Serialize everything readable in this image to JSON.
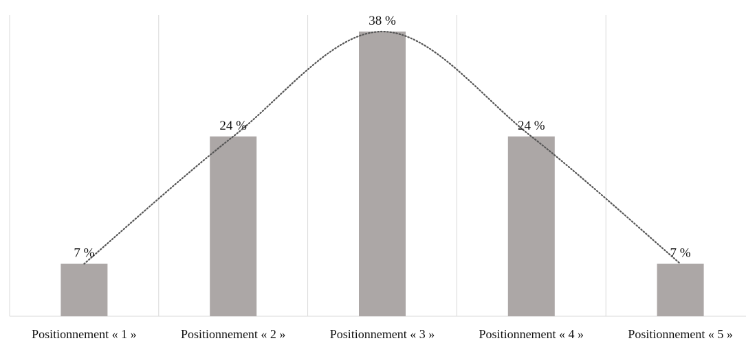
{
  "chart_data": {
    "type": "bar",
    "categories": [
      "Positionnement « 1 »",
      "Positionnement « 2 »",
      "Positionnement « 3 »",
      "Positionnement « 4 »",
      "Positionnement « 5 »"
    ],
    "values": [
      7,
      24,
      38,
      24,
      7
    ],
    "data_labels": [
      "7 %",
      "24 %",
      "38 %",
      "24 %",
      "7 %"
    ],
    "title": "",
    "xlabel": "",
    "ylabel": "",
    "ylim": [
      0,
      38
    ],
    "grid": "vertical separators between categories",
    "legend": "none",
    "trendline": "dotted smooth curve through bar tops",
    "colors": {
      "bar": "#aca7a6",
      "trendline": "#555555",
      "grid": "#d9d9d9",
      "text": "#111111"
    }
  }
}
